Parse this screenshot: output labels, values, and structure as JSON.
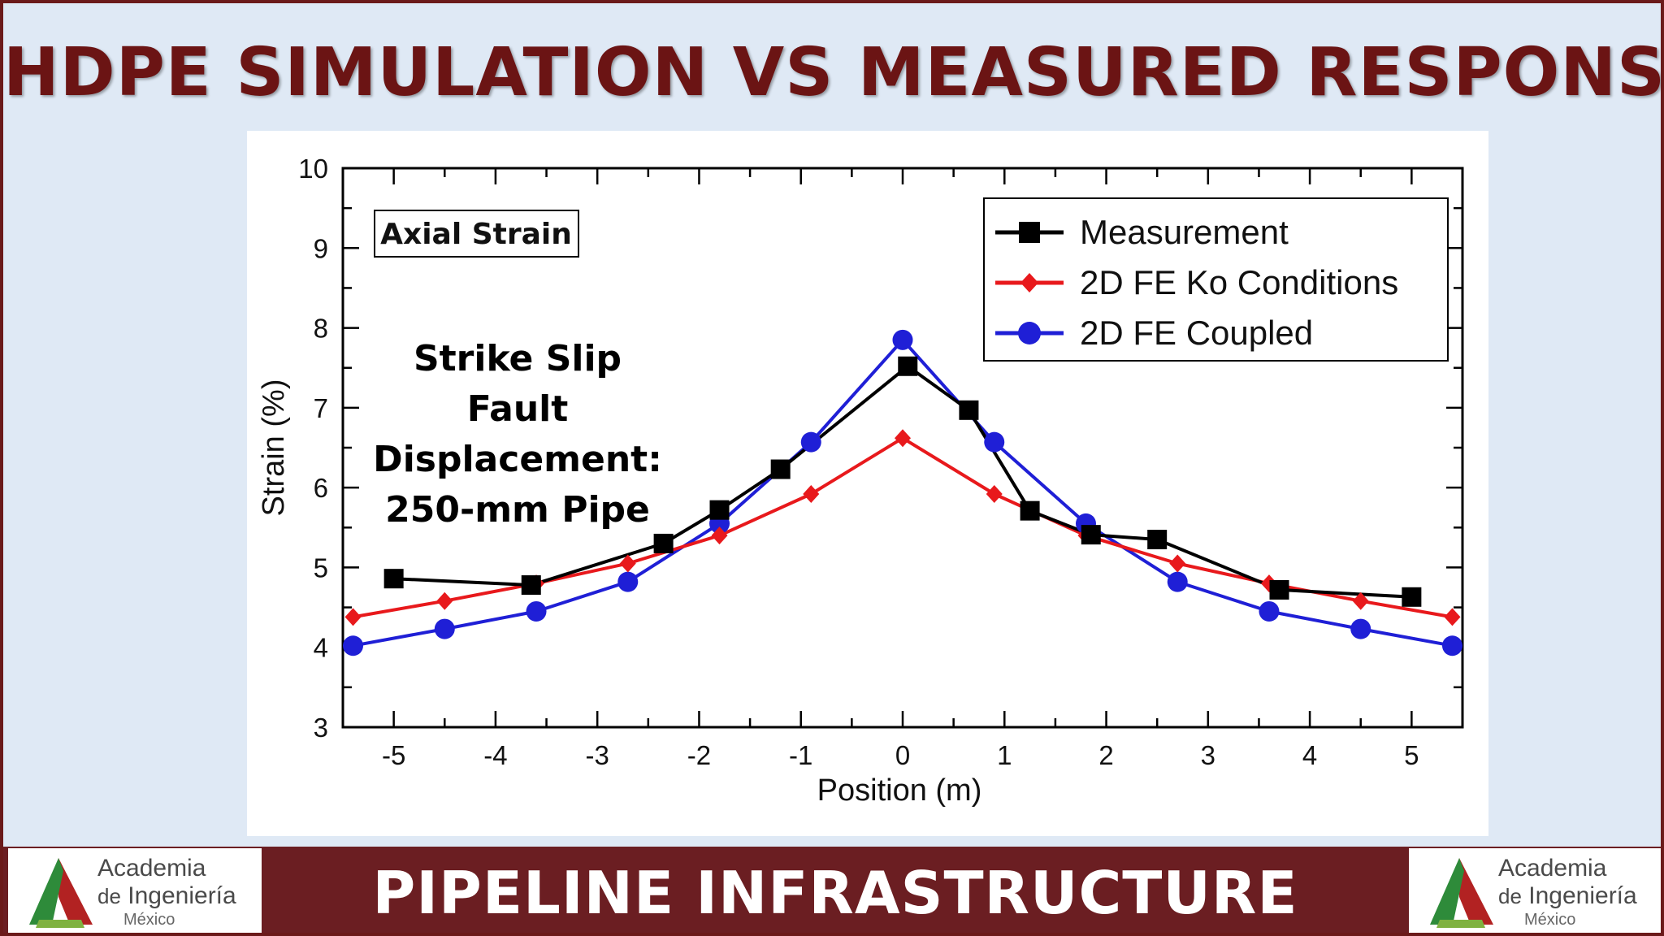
{
  "slide": {
    "title": "HDPE SIMULATION VS MEASURED RESPONSE",
    "footer": "PIPELINE INFRASTRUCTURE",
    "logo": {
      "line1": "Academia",
      "line2_prefix": "de",
      "line2_main": "Ingeniería",
      "line3": "México"
    },
    "colors": {
      "title": "#6b1414",
      "footer_bg": "#6b1e22",
      "background": "#dfe9f5"
    }
  },
  "chart_data": {
    "type": "line",
    "xlabel": "Position (m)",
    "ylabel": "Strain (%)",
    "xlim": [
      -5.5,
      5.5
    ],
    "ylim": [
      3,
      10
    ],
    "xticks": [
      -5,
      -4,
      -3,
      -2,
      -1,
      0,
      1,
      2,
      3,
      4,
      5
    ],
    "yticks": [
      3,
      4,
      5,
      6,
      7,
      8,
      9,
      10
    ],
    "grid": false,
    "legend_position": "top-right",
    "label_box": "Axial Strain",
    "annotation": [
      "Strike Slip",
      "Fault",
      "Displacement:",
      "250-mm Pipe"
    ],
    "series": [
      {
        "name": "Measurement",
        "color": "#000000",
        "marker": "square",
        "points": [
          [
            -5,
            4.86
          ],
          [
            -3.65,
            4.78
          ],
          [
            -2.35,
            5.3
          ],
          [
            -1.8,
            5.72
          ],
          [
            -1.2,
            6.23
          ],
          [
            0.05,
            7.52
          ],
          [
            0.65,
            6.97
          ],
          [
            1.25,
            5.71
          ],
          [
            1.85,
            5.41
          ],
          [
            2.5,
            5.35
          ],
          [
            3.7,
            4.72
          ],
          [
            5.0,
            4.63
          ]
        ]
      },
      {
        "name": "2D FE Ko Conditions",
        "color": "#e8191c",
        "marker": "diamond",
        "points": [
          [
            -5.4,
            4.38
          ],
          [
            -4.5,
            4.58
          ],
          [
            -3.6,
            4.8
          ],
          [
            -2.7,
            5.05
          ],
          [
            -1.8,
            5.4
          ],
          [
            -0.9,
            5.92
          ],
          [
            0.0,
            6.62
          ],
          [
            0.9,
            5.92
          ],
          [
            1.8,
            5.4
          ],
          [
            2.7,
            5.05
          ],
          [
            3.6,
            4.8
          ],
          [
            4.5,
            4.58
          ],
          [
            5.4,
            4.38
          ]
        ]
      },
      {
        "name": "2D FE Coupled",
        "color": "#1f1fd6",
        "marker": "circle",
        "points": [
          [
            -5.4,
            4.02
          ],
          [
            -4.5,
            4.23
          ],
          [
            -3.6,
            4.45
          ],
          [
            -2.7,
            4.82
          ],
          [
            -1.8,
            5.55
          ],
          [
            -0.9,
            6.57
          ],
          [
            0.0,
            7.85
          ],
          [
            0.9,
            6.57
          ],
          [
            1.8,
            5.55
          ],
          [
            2.7,
            4.82
          ],
          [
            3.6,
            4.45
          ],
          [
            4.5,
            4.23
          ],
          [
            5.4,
            4.02
          ]
        ]
      }
    ]
  }
}
